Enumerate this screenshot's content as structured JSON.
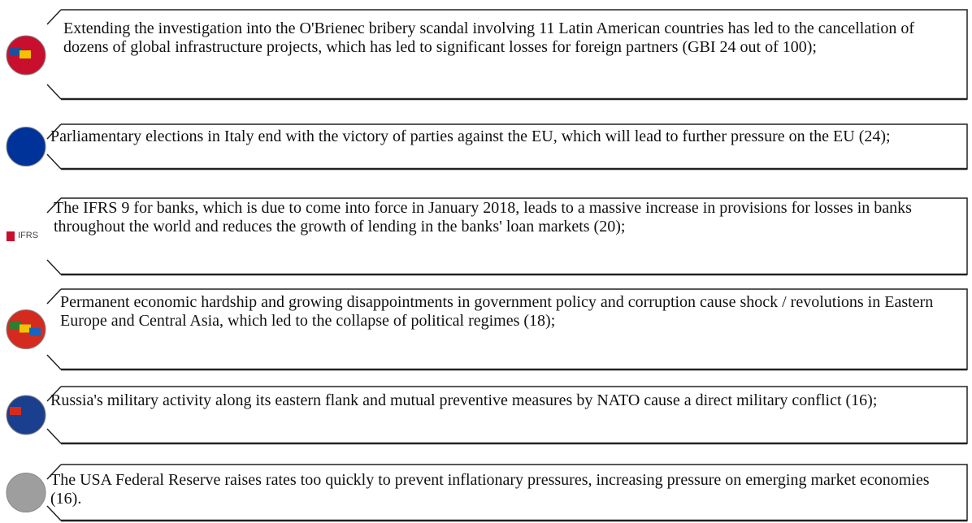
{
  "items": [
    {
      "text": "Extending the investigation into the O'Brienec bribery scandal involving 11 Latin American countries has led to the cancellation of dozens of global infrastructure projects, which has led to significant losses for foreign partners (GBI 24 out of 100);"
    },
    {
      "text": "Parliamentary elections in Italy end with the victory of parties against the EU, which will lead to further pressure on the EU (24);"
    },
    {
      "text": "The IFRS 9 for banks, which is due to come into force in January 2018, leads to a massive increase in provisions for losses in banks throughout the world and reduces the growth of lending in the banks' loan markets (20);",
      "icon_label": "IFRS"
    },
    {
      "text": "Permanent economic hardship and growing disappointments in government policy and corruption cause shock / revolutions in Eastern Europe and Central Asia, which led to the collapse of political regimes (18);"
    },
    {
      "text": "Russia's military activity along its eastern flank and mutual preventive measures by NATO cause a direct military conflict (16);"
    },
    {
      "text": "The USA Federal Reserve raises rates too quickly to prevent inflationary pressures, increasing pressure on emerging market economies (16)."
    }
  ]
}
